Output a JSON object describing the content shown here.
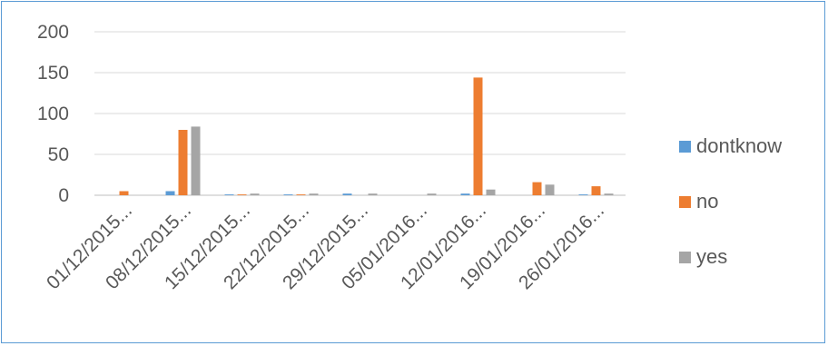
{
  "chart_data": {
    "type": "bar",
    "categories": [
      "01/12/2015...",
      "08/12/2015...",
      "15/12/2015...",
      "22/12/2015...",
      "29/12/2015...",
      "05/01/2016...",
      "12/01/2016...",
      "19/01/2016...",
      "26/01/2016..."
    ],
    "series": [
      {
        "name": "dontknow",
        "color": "#5b9bd5",
        "values": [
          0,
          5,
          1,
          1,
          2,
          0,
          2,
          0,
          1
        ]
      },
      {
        "name": "no",
        "color": "#ed7d31",
        "values": [
          5,
          80,
          1,
          1,
          0,
          0,
          144,
          16,
          11
        ]
      },
      {
        "name": "yes",
        "color": "#a5a5a5",
        "values": [
          0,
          84,
          2,
          2,
          2,
          2,
          7,
          13,
          2
        ]
      }
    ],
    "yticks": [
      "0",
      "50",
      "100",
      "150",
      "200"
    ],
    "ylim": [
      0,
      200
    ],
    "grid": true,
    "legend": "right",
    "title": "",
    "xlabel": "",
    "ylabel": ""
  }
}
